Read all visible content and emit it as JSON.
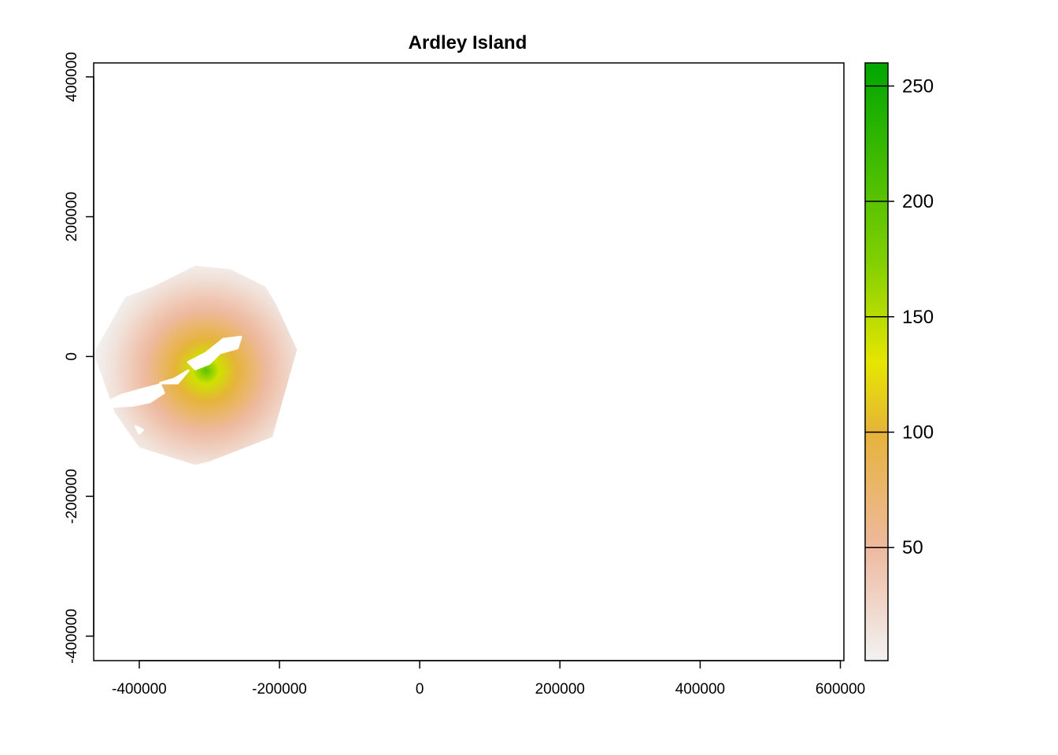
{
  "chart_data": {
    "type": "heatmap",
    "title": "Ardley Island",
    "xlabel": "",
    "ylabel": "",
    "xlim": [
      -465000,
      605000
    ],
    "ylim": [
      -435000,
      420000
    ],
    "x_ticks": [
      -400000,
      -200000,
      0,
      200000,
      400000,
      600000
    ],
    "x_tick_labels": [
      "-400000",
      "-200000",
      "0",
      "200000",
      "400000",
      "600000"
    ],
    "y_ticks": [
      -400000,
      -200000,
      0,
      200000,
      400000
    ],
    "y_tick_labels": [
      "-400000",
      "-200000",
      "0",
      "200000",
      "400000"
    ],
    "grid": false,
    "legend": {
      "placement": "right",
      "range": [
        1,
        260
      ],
      "ticks": [
        50,
        100,
        150,
        200,
        250
      ],
      "tick_labels": [
        "50",
        "100",
        "150",
        "200",
        "250"
      ],
      "colors": [
        {
          "value": 1,
          "color": "#f2f2f2"
        },
        {
          "value": 50,
          "color": "#eeb99f"
        },
        {
          "value": 100,
          "color": "#e6b33a"
        },
        {
          "value": 130,
          "color": "#e6e600"
        },
        {
          "value": 175,
          "color": "#7fcf00"
        },
        {
          "value": 260,
          "color": "#00a600"
        }
      ]
    },
    "density_field": {
      "peak_value": 200,
      "peak_center": [
        -305000,
        -20000
      ],
      "polygon_outline": [
        [
          -320000,
          130000
        ],
        [
          -270000,
          125000
        ],
        [
          -220000,
          100000
        ],
        [
          -205000,
          75000
        ],
        [
          -175000,
          10000
        ],
        [
          -210000,
          -115000
        ],
        [
          -300000,
          -150000
        ],
        [
          -320000,
          -155000
        ],
        [
          -400000,
          -130000
        ],
        [
          -435000,
          -80000
        ],
        [
          -465000,
          5000
        ],
        [
          -420000,
          85000
        ],
        [
          -380000,
          100000
        ]
      ],
      "land_holes": [
        [
          [
            -280000,
            25000
          ],
          [
            -255000,
            28000
          ],
          [
            -260000,
            12000
          ],
          [
            -285000,
            5000
          ],
          [
            -300000,
            -10000
          ],
          [
            -320000,
            -18000
          ],
          [
            -330000,
            -8000
          ],
          [
            -305000,
            5000
          ]
        ],
        [
          [
            -330000,
            -20000
          ],
          [
            -350000,
            -32000
          ],
          [
            -370000,
            -38000
          ],
          [
            -345000,
            -38000
          ]
        ],
        [
          [
            -370000,
            -40000
          ],
          [
            -400000,
            -48000
          ],
          [
            -425000,
            -55000
          ],
          [
            -445000,
            -65000
          ],
          [
            -440000,
            -72000
          ],
          [
            -410000,
            -70000
          ],
          [
            -385000,
            -65000
          ],
          [
            -365000,
            -52000
          ]
        ],
        [
          [
            -405000,
            -100000
          ],
          [
            -400000,
            -110000
          ],
          [
            -395000,
            -105000
          ]
        ]
      ]
    }
  }
}
